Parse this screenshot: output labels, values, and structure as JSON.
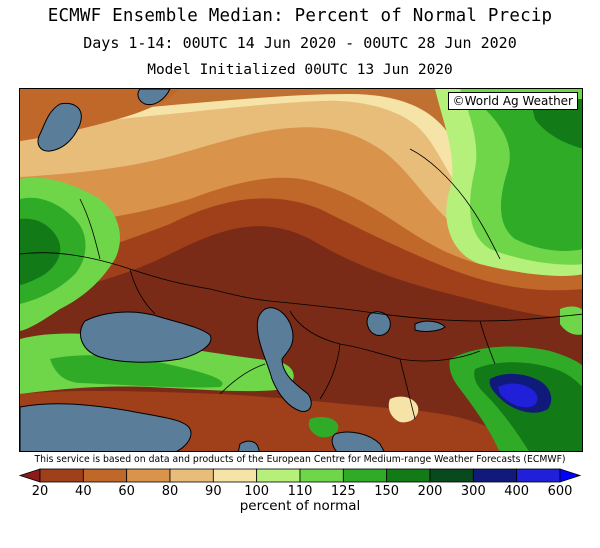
{
  "title": "ECMWF Ensemble Median: Percent of Normal Precip",
  "subtitle": "Days 1-14: 00UTC 14 Jun 2020 - 00UTC 28 Jun 2020",
  "model_init": "Model Initialized 00UTC 13 Jun 2020",
  "copyright": "©World Ag Weather",
  "source_note": "This service is based on data and products of the European Centre for Medium-range Weather Forecasts (ECMWF)",
  "colorbar": {
    "unit_label": "percent of normal",
    "ticks": [
      "20",
      "40",
      "60",
      "80",
      "90",
      "100",
      "110",
      "125",
      "150",
      "200",
      "300",
      "400",
      "600"
    ],
    "colors": [
      "#8b1a1a",
      "#a0401a",
      "#c0672a",
      "#d9934a",
      "#e8bd7a",
      "#f5e3a8",
      "#b5f07a",
      "#6fd64a",
      "#2fab28",
      "#127a16",
      "#084a1e",
      "#101a7a",
      "#2020d8",
      "#0000ff"
    ]
  },
  "map": {
    "water_color": "#5a7d9a",
    "land_colors": {
      "very_dry": "#7a2b17",
      "dry": "#a0401a",
      "below": "#c0672a",
      "slightly_below": "#d9934a",
      "near_below": "#e8bd7a",
      "near": "#f5e3a8",
      "above": "#b5f07a",
      "wet": "#6fd64a",
      "wetter": "#2fab28",
      "very_wet": "#127a16",
      "extreme": "#084a1e",
      "purple": "#101a7a",
      "blue": "#2020d8"
    }
  }
}
